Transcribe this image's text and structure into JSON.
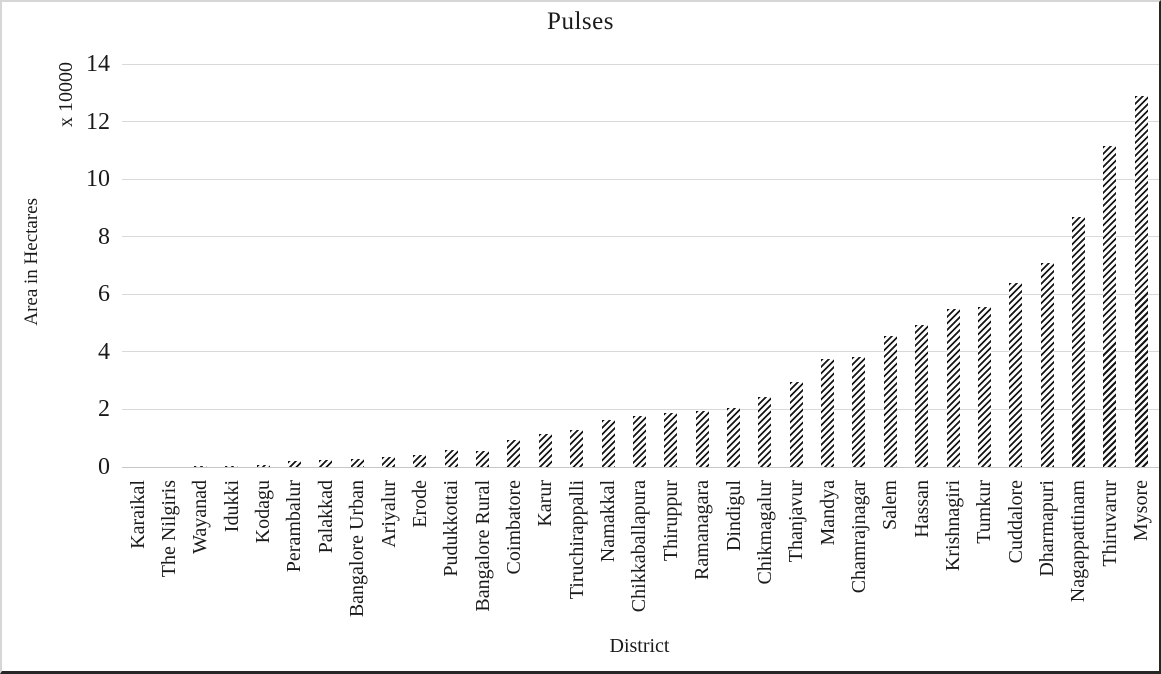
{
  "chart_data": {
    "type": "bar",
    "title": "Pulses",
    "xlabel": "District",
    "ylabel": "Area in Hectares",
    "y_units_label": "x 10000",
    "ylim": [
      0,
      14
    ],
    "yticks": [
      0,
      2,
      4,
      6,
      8,
      10,
      12,
      14
    ],
    "grid": "horizontal",
    "legend_position": "none",
    "bar_fill": "diagonal-hatch",
    "colors": {
      "hatch": "#161616",
      "gridline": "#d9d9d9",
      "text": "#1a1a1a",
      "background": "#ffffff"
    },
    "categories": [
      "Karaikal",
      "The Nilgiris",
      "Wayanad",
      "Idukki",
      "Kodagu",
      "Perambalur",
      "Palakkad",
      "Bangalore Urban",
      "Ariyalur",
      "Erode",
      "Pudukkottai",
      "Bangalore Rural",
      "Coimbatore",
      "Karur",
      "Tiruchirappalli",
      "Namakkal",
      "Chikkaballapura",
      "Thiruppur",
      "Ramanagara",
      "Dindigul",
      "Chikmagalur",
      "Thanjavur",
      "Mandya",
      "Chamrajnagar",
      "Salem",
      "Hassan",
      "Krishnagiri",
      "Tumkur",
      "Cuddalore",
      "Dharmapuri",
      "Nagappattinam",
      "Thiruvarur",
      "Mysore"
    ],
    "values": [
      0.01,
      0.01,
      0.02,
      0.03,
      0.06,
      0.22,
      0.24,
      0.28,
      0.35,
      0.43,
      0.58,
      0.55,
      0.95,
      1.15,
      1.28,
      1.62,
      1.77,
      1.87,
      1.95,
      2.05,
      2.42,
      2.95,
      3.75,
      3.83,
      4.55,
      4.93,
      5.5,
      5.55,
      6.4,
      7.1,
      8.7,
      11.15,
      12.88
    ]
  }
}
